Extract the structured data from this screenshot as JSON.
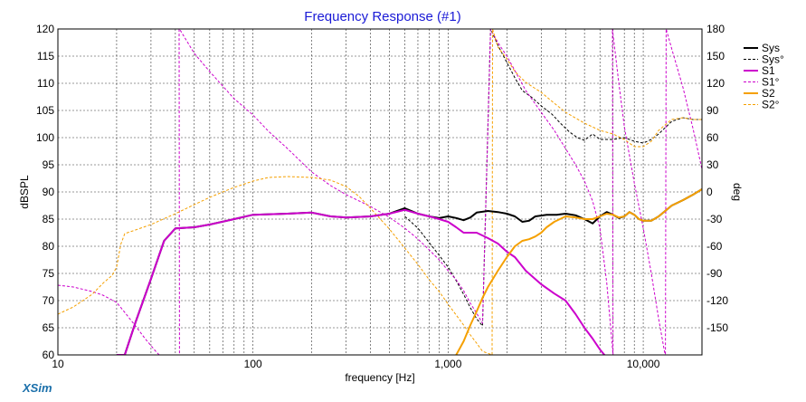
{
  "chart_data": {
    "type": "line",
    "title": "Frequency Response (#1)",
    "xlabel": "frequency [Hz]",
    "ylabel_left": "dBSPL",
    "ylabel_right": "deg",
    "x_scale": "log",
    "xlim": [
      10,
      20000
    ],
    "ylim_left": [
      60,
      120
    ],
    "ylim_right": [
      -180,
      180
    ],
    "x_ticks": [
      {
        "value": 10,
        "label": "10"
      },
      {
        "value": 100,
        "label": "100"
      },
      {
        "value": 1000,
        "label": "1,000"
      },
      {
        "value": 10000,
        "label": "10,000"
      }
    ],
    "y_ticks_left": [
      "60",
      "65",
      "70",
      "75",
      "80",
      "85",
      "90",
      "95",
      "100",
      "105",
      "110",
      "115",
      "120"
    ],
    "y_ticks_right": [
      "-150",
      "-120",
      "-90",
      "-60",
      "-30",
      "0",
      "30",
      "60",
      "90",
      "120",
      "150",
      "180"
    ],
    "legend_position": "top-right",
    "grid": true,
    "brand": "XSim",
    "series": [
      {
        "name": "Sys",
        "axis": "left",
        "color": "#000000",
        "dash": false,
        "width": 2,
        "points": [
          [
            20,
            60
          ],
          [
            22,
            60
          ],
          [
            25,
            66
          ],
          [
            30,
            74
          ],
          [
            35,
            81
          ],
          [
            40,
            83.3
          ],
          [
            50,
            83.5
          ],
          [
            60,
            84
          ],
          [
            80,
            85
          ],
          [
            100,
            85.8
          ],
          [
            150,
            86
          ],
          [
            200,
            86.2
          ],
          [
            250,
            85.5
          ],
          [
            300,
            85.3
          ],
          [
            400,
            85.5
          ],
          [
            500,
            86
          ],
          [
            600,
            87
          ],
          [
            700,
            86
          ],
          [
            800,
            85.5
          ],
          [
            900,
            85.2
          ],
          [
            1000,
            85.5
          ],
          [
            1100,
            85.2
          ],
          [
            1200,
            84.8
          ],
          [
            1300,
            85.3
          ],
          [
            1400,
            86.2
          ],
          [
            1600,
            86.5
          ],
          [
            1800,
            86.3
          ],
          [
            2000,
            86
          ],
          [
            2200,
            85.5
          ],
          [
            2400,
            84.5
          ],
          [
            2600,
            84.7
          ],
          [
            2800,
            85.5
          ],
          [
            3200,
            85.8
          ],
          [
            3600,
            85.8
          ],
          [
            4000,
            86
          ],
          [
            4500,
            85.7
          ],
          [
            5000,
            85
          ],
          [
            5500,
            84.2
          ],
          [
            6000,
            85.5
          ],
          [
            6500,
            86.3
          ],
          [
            7000,
            85.8
          ],
          [
            7500,
            85.2
          ],
          [
            8000,
            85.5
          ],
          [
            8500,
            86.3
          ],
          [
            9000,
            85.8
          ],
          [
            9500,
            85
          ],
          [
            10000,
            84.7
          ],
          [
            11000,
            84.7
          ],
          [
            12000,
            85.5
          ],
          [
            14000,
            87.5
          ],
          [
            16000,
            88.5
          ],
          [
            18000,
            89.5
          ],
          [
            20000,
            90.5
          ]
        ]
      },
      {
        "name": "Sys°",
        "axis": "right",
        "color": "#000000",
        "dash": true,
        "width": 1,
        "points": [
          [
            600,
            -27
          ],
          [
            700,
            -40
          ],
          [
            800,
            -56
          ],
          [
            900,
            -70
          ],
          [
            1000,
            -83
          ],
          [
            1100,
            -98
          ],
          [
            1200,
            -113
          ],
          [
            1300,
            -128
          ],
          [
            1400,
            -140
          ],
          [
            1500,
            -148
          ],
          [
            1650,
            180
          ],
          [
            1800,
            162
          ],
          [
            2000,
            143
          ],
          [
            2200,
            126
          ],
          [
            2400,
            112
          ],
          [
            2700,
            104
          ],
          [
            3000,
            95
          ],
          [
            3400,
            86
          ],
          [
            3800,
            75
          ],
          [
            4200,
            66
          ],
          [
            4600,
            60
          ],
          [
            5000,
            57
          ],
          [
            5500,
            64
          ],
          [
            6000,
            58
          ],
          [
            7000,
            58
          ],
          [
            8000,
            60
          ],
          [
            9000,
            56
          ],
          [
            10000,
            54
          ],
          [
            11000,
            58
          ],
          [
            12000,
            64
          ],
          [
            14000,
            78
          ],
          [
            16000,
            82
          ],
          [
            18000,
            80
          ],
          [
            20000,
            80
          ]
        ]
      },
      {
        "name": "S1",
        "axis": "left",
        "color": "#cc00cc",
        "dash": false,
        "width": 2,
        "points": [
          [
            20,
            60
          ],
          [
            22,
            60
          ],
          [
            25,
            66
          ],
          [
            30,
            74
          ],
          [
            35,
            81
          ],
          [
            40,
            83.3
          ],
          [
            50,
            83.5
          ],
          [
            60,
            84
          ],
          [
            80,
            85
          ],
          [
            100,
            85.8
          ],
          [
            150,
            86
          ],
          [
            200,
            86.2
          ],
          [
            250,
            85.5
          ],
          [
            300,
            85.3
          ],
          [
            400,
            85.5
          ],
          [
            500,
            86
          ],
          [
            600,
            86.7
          ],
          [
            700,
            86
          ],
          [
            800,
            85.5
          ],
          [
            900,
            85
          ],
          [
            1000,
            84.5
          ],
          [
            1100,
            83.5
          ],
          [
            1200,
            82.5
          ],
          [
            1400,
            82.5
          ],
          [
            1600,
            81.5
          ],
          [
            1800,
            80.5
          ],
          [
            2000,
            79
          ],
          [
            2200,
            78
          ],
          [
            2500,
            75.5
          ],
          [
            3000,
            73
          ],
          [
            3500,
            71.3
          ],
          [
            4000,
            70
          ],
          [
            4500,
            67.5
          ],
          [
            5000,
            65
          ],
          [
            5500,
            63
          ],
          [
            6000,
            61
          ],
          [
            6500,
            59.5
          ]
        ]
      },
      {
        "name": "S1°",
        "axis": "right",
        "color": "#cc00cc",
        "dash": true,
        "width": 1,
        "points": [
          [
            10,
            -103
          ],
          [
            12,
            -105
          ],
          [
            15,
            -110
          ],
          [
            17,
            -114
          ],
          [
            20,
            -122
          ],
          [
            22,
            -133
          ],
          [
            25,
            -148
          ],
          [
            28,
            -162
          ],
          [
            32,
            -177
          ],
          [
            35,
            -185
          ],
          [
            42,
            -180
          ],
          [
            41.8,
            180
          ],
          [
            42,
            180
          ],
          [
            50,
            153
          ],
          [
            60,
            133
          ],
          [
            80,
            103
          ],
          [
            100,
            85
          ],
          [
            120,
            67
          ],
          [
            150,
            48
          ],
          [
            200,
            22
          ],
          [
            250,
            7
          ],
          [
            300,
            -3
          ],
          [
            400,
            -16
          ],
          [
            500,
            -28
          ],
          [
            600,
            -40
          ],
          [
            700,
            -52
          ],
          [
            800,
            -64
          ],
          [
            900,
            -75
          ],
          [
            1000,
            -87
          ],
          [
            1100,
            -97
          ],
          [
            1200,
            -109
          ],
          [
            1300,
            -123
          ],
          [
            1400,
            -134
          ],
          [
            1500,
            -145
          ],
          [
            1650,
            180
          ],
          [
            1800,
            165
          ],
          [
            2000,
            150
          ],
          [
            2200,
            134
          ],
          [
            2500,
            112
          ],
          [
            3000,
            88
          ],
          [
            3500,
            68
          ],
          [
            4000,
            48
          ],
          [
            4500,
            30
          ],
          [
            5000,
            12
          ],
          [
            5500,
            -10
          ],
          [
            6000,
            -40
          ],
          [
            6500,
            -100
          ],
          [
            7000,
            -180
          ],
          [
            6950,
            180
          ],
          [
            7500,
            120
          ],
          [
            8000,
            72
          ],
          [
            9000,
            10
          ],
          [
            10000,
            -40
          ],
          [
            11000,
            -90
          ],
          [
            12000,
            -140
          ],
          [
            13000,
            -182
          ],
          [
            13100,
            180
          ],
          [
            14000,
            158
          ],
          [
            16000,
            115
          ],
          [
            18000,
            70
          ],
          [
            20000,
            25
          ]
        ]
      },
      {
        "name": "S2",
        "axis": "left",
        "color": "#f5a000",
        "dash": false,
        "width": 2,
        "points": [
          [
            1100,
            60
          ],
          [
            1200,
            62.5
          ],
          [
            1300,
            65.5
          ],
          [
            1400,
            68
          ],
          [
            1500,
            70.5
          ],
          [
            1600,
            72.5
          ],
          [
            1800,
            75.5
          ],
          [
            2000,
            78
          ],
          [
            2200,
            80
          ],
          [
            2400,
            81
          ],
          [
            2600,
            81.3
          ],
          [
            2800,
            81.8
          ],
          [
            3000,
            82.5
          ],
          [
            3200,
            83.5
          ],
          [
            3500,
            84.5
          ],
          [
            4000,
            85.5
          ],
          [
            4500,
            85.3
          ],
          [
            5000,
            85
          ],
          [
            5500,
            85
          ],
          [
            6000,
            85.5
          ],
          [
            6500,
            86
          ],
          [
            7000,
            85.8
          ],
          [
            7500,
            85.3
          ],
          [
            8000,
            85.5
          ],
          [
            8500,
            86.3
          ],
          [
            9000,
            85.8
          ],
          [
            9500,
            85
          ],
          [
            10000,
            84.7
          ],
          [
            11000,
            84.7
          ],
          [
            12000,
            85.5
          ],
          [
            14000,
            87.5
          ],
          [
            16000,
            88.5
          ],
          [
            18000,
            89.5
          ],
          [
            20000,
            90.5
          ]
        ]
      },
      {
        "name": "S2°",
        "axis": "right",
        "color": "#f5a000",
        "dash": true,
        "width": 1,
        "points": [
          [
            10,
            -135
          ],
          [
            12,
            -127
          ],
          [
            15,
            -113
          ],
          [
            17,
            -101
          ],
          [
            19,
            -92
          ],
          [
            20,
            -83
          ],
          [
            21,
            -58
          ],
          [
            22,
            -46
          ],
          [
            25,
            -42
          ],
          [
            30,
            -36
          ],
          [
            40,
            -24
          ],
          [
            50,
            -14
          ],
          [
            60,
            -6
          ],
          [
            70,
            0
          ],
          [
            80,
            5
          ],
          [
            100,
            12
          ],
          [
            120,
            16
          ],
          [
            150,
            17
          ],
          [
            200,
            16
          ],
          [
            250,
            13
          ],
          [
            300,
            6
          ],
          [
            350,
            -5
          ],
          [
            400,
            -18
          ],
          [
            500,
            -41
          ],
          [
            600,
            -62
          ],
          [
            700,
            -80
          ],
          [
            800,
            -97
          ],
          [
            900,
            -110
          ],
          [
            1000,
            -124
          ],
          [
            1100,
            -136
          ],
          [
            1200,
            -147
          ],
          [
            1300,
            -158
          ],
          [
            1400,
            -167
          ],
          [
            1500,
            -176
          ],
          [
            1680,
            -180
          ],
          [
            1690,
            180
          ],
          [
            1800,
            160
          ],
          [
            2000,
            147
          ],
          [
            2200,
            133
          ],
          [
            2500,
            121
          ],
          [
            3000,
            110
          ],
          [
            3500,
            98
          ],
          [
            4000,
            88
          ],
          [
            5000,
            76
          ],
          [
            6000,
            68
          ],
          [
            7000,
            64
          ],
          [
            8000,
            58
          ],
          [
            9000,
            50
          ],
          [
            10000,
            50
          ],
          [
            11000,
            56
          ],
          [
            12000,
            68
          ],
          [
            14000,
            80
          ],
          [
            16000,
            82
          ],
          [
            18000,
            80
          ],
          [
            20000,
            80
          ]
        ]
      }
    ]
  }
}
